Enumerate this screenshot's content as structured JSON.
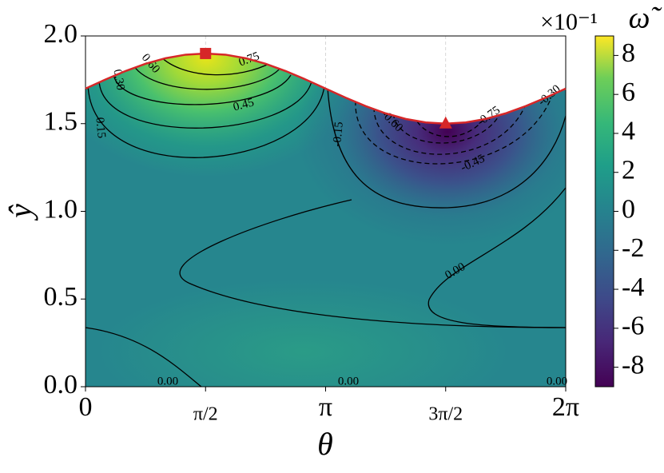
{
  "chart_data": {
    "type": "contour",
    "xlabel": "θ",
    "ylabel": "ŷ",
    "xlim": [
      0,
      6.2832
    ],
    "ylim": [
      0,
      2
    ],
    "xticks": [
      0,
      {
        "value": 1.5708,
        "label": "π/2"
      },
      {
        "value": 3.1416,
        "label": "π"
      },
      {
        "value": 4.7124,
        "label": "3π/2"
      },
      {
        "value": 6.2832,
        "label": "2π"
      }
    ],
    "yticks": [
      {
        "value": 0,
        "label": "0.0"
      },
      {
        "value": 0.5,
        "label": "0.5"
      },
      {
        "value": 1,
        "label": "1.0"
      },
      {
        "value": 1.5,
        "label": "1.5"
      },
      {
        "value": 2,
        "label": "2.0"
      }
    ],
    "boundary": {
      "color": "#d62728",
      "x": [
        0,
        0.2618,
        0.5236,
        0.7854,
        1.0472,
        1.309,
        1.5708,
        1.8326,
        2.0944,
        2.3562,
        2.618,
        2.8798,
        3.1416,
        3.4034,
        3.6652,
        3.927,
        4.1888,
        4.4506,
        4.7124,
        4.9742,
        5.236,
        5.4978,
        5.7596,
        6.0214,
        6.2832
      ],
      "y": [
        1.7,
        1.7518,
        1.8,
        1.8414,
        1.8732,
        1.8932,
        1.9,
        1.8932,
        1.8732,
        1.8414,
        1.8,
        1.7518,
        1.7,
        1.6482,
        1.6,
        1.5586,
        1.5268,
        1.5068,
        1.5,
        1.5068,
        1.5268,
        1.5586,
        1.6,
        1.6482,
        1.7
      ]
    },
    "markers": [
      {
        "shape": "square",
        "x": 1.5708,
        "y": 1.9,
        "color": "#d62728"
      },
      {
        "shape": "triangle",
        "x": 4.7124,
        "y": 1.5,
        "color": "#d62728"
      }
    ],
    "levels": [
      {
        "value": -0.75,
        "label": "-0.75"
      },
      {
        "value": -0.6,
        "label": "-0.60"
      },
      {
        "value": -0.45,
        "label": "-0.45"
      },
      {
        "value": -0.3,
        "label": "-0.30"
      },
      {
        "value": -0.15,
        "label": "-0.15"
      },
      {
        "value": 0,
        "label": "0.00"
      },
      {
        "value": 0.15,
        "label": "0.15"
      },
      {
        "value": 0.3,
        "label": "0.30"
      },
      {
        "value": 0.45,
        "label": "0.45"
      },
      {
        "value": 0.6,
        "label": "0.60"
      },
      {
        "value": 0.75,
        "label": "0.75"
      }
    ],
    "colorbar": {
      "label": "ω̃",
      "offset_label": "×10⁻¹",
      "clim": [
        -9,
        9
      ],
      "ticks": [
        8,
        6,
        4,
        2,
        0,
        -2,
        -4,
        -6,
        -8
      ],
      "colormap": "viridis"
    }
  }
}
